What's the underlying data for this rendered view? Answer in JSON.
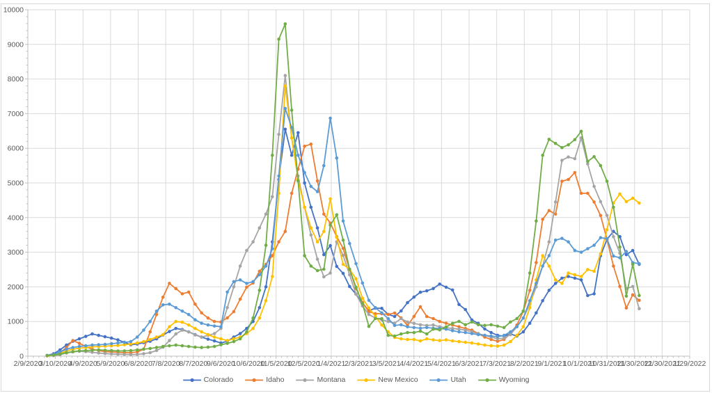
{
  "chart_data": {
    "type": "line",
    "marker": "circle",
    "grid": true,
    "x_axis": {
      "tick_labels": [
        "2/9/2020",
        "3/10/2020",
        "4/9/2020",
        "5/9/2020",
        "6/8/2020",
        "7/8/2020",
        "8/7/2020",
        "9/6/2020",
        "10/6/2020",
        "11/5/2020",
        "12/5/2020",
        "1/4/2021",
        "2/3/2021",
        "3/5/2021",
        "4/4/2021",
        "5/4/2021",
        "6/3/2021",
        "7/3/2021",
        "8/2/2021",
        "9/1/2021",
        "10/1/2021",
        "10/31/2021",
        "11/30/2021",
        "12/30/2021",
        "1/29/2022"
      ],
      "major_tick_interval_days": 30,
      "minor_tick_interval_days": 6
    },
    "y_axis": {
      "min": 0,
      "max": 10000,
      "major_step": 1000,
      "minor_step": 200
    },
    "legend": {
      "position": "bottom",
      "entries": [
        "Colorado",
        "Idaho",
        "Montana",
        "New Mexico",
        "Utah",
        "Wyoming"
      ]
    },
    "data_start_date": "3/1/2020",
    "data_interval_days": 7,
    "series": [
      {
        "name": "Colorado",
        "color": "#4472C4",
        "values": [
          20,
          70,
          180,
          320,
          430,
          500,
          570,
          640,
          600,
          560,
          520,
          470,
          400,
          330,
          350,
          390,
          430,
          500,
          610,
          710,
          800,
          770,
          700,
          620,
          550,
          490,
          440,
          380,
          430,
          550,
          650,
          800,
          1000,
          1400,
          2000,
          3300,
          5100,
          6550,
          5800,
          6450,
          5000,
          4300,
          3700,
          2930,
          3190,
          2590,
          2390,
          2010,
          1790,
          1530,
          1310,
          1385,
          1380,
          1205,
          1145,
          1305,
          1545,
          1705,
          1845,
          1885,
          1950,
          2080,
          1990,
          1910,
          1490,
          1345,
          1045,
          945,
          785,
          680,
          600,
          580,
          640,
          580,
          700,
          950,
          1250,
          1600,
          1900,
          2100,
          2250,
          2300,
          2250,
          2200,
          1750,
          1800,
          2900,
          3370,
          3600,
          3450,
          2930,
          3050,
          2650
        ]
      },
      {
        "name": "Idaho",
        "color": "#ED7D31",
        "values": [
          10,
          30,
          100,
          250,
          450,
          370,
          280,
          200,
          160,
          130,
          120,
          110,
          100,
          100,
          120,
          200,
          700,
          1200,
          1700,
          2100,
          1950,
          1800,
          1850,
          1500,
          1250,
          1100,
          1000,
          985,
          1105,
          1285,
          1645,
          1990,
          2110,
          2450,
          2650,
          2900,
          3300,
          3600,
          4700,
          5400,
          6060,
          6120,
          5060,
          4100,
          3840,
          3450,
          3110,
          2500,
          1950,
          1550,
          1285,
          1225,
          1225,
          1205,
          1245,
          1105,
          885,
          1145,
          1425,
          1145,
          1085,
          1000,
          950,
          900,
          850,
          800,
          750,
          650,
          550,
          480,
          430,
          480,
          650,
          900,
          1300,
          1900,
          2700,
          3950,
          4200,
          4100,
          5050,
          5100,
          5300,
          4700,
          4700,
          4450,
          4060,
          3370,
          2600,
          2010,
          1390,
          1770,
          1610
        ]
      },
      {
        "name": "Montana",
        "color": "#A5A5A5",
        "values": [
          5,
          15,
          40,
          90,
          120,
          140,
          130,
          110,
          90,
          75,
          65,
          55,
          50,
          45,
          50,
          70,
          100,
          160,
          260,
          450,
          640,
          750,
          700,
          610,
          550,
          600,
          650,
          800,
          1400,
          2000,
          2600,
          3050,
          3300,
          3700,
          4100,
          4600,
          6400,
          8100,
          6300,
          5200,
          4300,
          3500,
          2800,
          2290,
          2400,
          3300,
          2910,
          2350,
          1790,
          1450,
          1200,
          1100,
          1050,
          1000,
          950,
          1085,
          985,
          945,
          905,
          885,
          900,
          850,
          820,
          800,
          780,
          750,
          700,
          650,
          600,
          550,
          500,
          520,
          620,
          850,
          1100,
          1500,
          2000,
          2600,
          3300,
          4450,
          5650,
          5750,
          5700,
          6300,
          5550,
          4900,
          4460,
          4060,
          3450,
          2970,
          1950,
          2010,
          1370
        ]
      },
      {
        "name": "New Mexico",
        "color": "#FFC000",
        "values": [
          10,
          30,
          80,
          150,
          200,
          230,
          250,
          270,
          280,
          290,
          300,
          310,
          330,
          350,
          380,
          420,
          480,
          550,
          620,
          850,
          1000,
          980,
          900,
          800,
          700,
          620,
          550,
          500,
          450,
          500,
          550,
          650,
          800,
          1100,
          1600,
          2300,
          4700,
          7800,
          6300,
          5100,
          4300,
          3700,
          3300,
          3600,
          4540,
          3430,
          2650,
          2510,
          2230,
          1670,
          1390,
          1150,
          900,
          700,
          540,
          500,
          480,
          480,
          440,
          500,
          470,
          450,
          470,
          440,
          420,
          400,
          380,
          350,
          320,
          300,
          290,
          320,
          420,
          600,
          850,
          1400,
          2200,
          2900,
          2600,
          2200,
          2100,
          2400,
          2350,
          2300,
          2500,
          2450,
          2950,
          3650,
          4420,
          4680,
          4460,
          4560,
          4420
        ]
      },
      {
        "name": "Utah",
        "color": "#5B9BD5",
        "values": [
          20,
          50,
          120,
          200,
          250,
          280,
          300,
          320,
          330,
          340,
          360,
          380,
          400,
          420,
          550,
          750,
          1000,
          1300,
          1480,
          1500,
          1400,
          1300,
          1200,
          1050,
          950,
          900,
          870,
          850,
          1850,
          2150,
          2200,
          2100,
          2150,
          2350,
          2600,
          3100,
          5200,
          7150,
          6600,
          5800,
          5300,
          4900,
          4750,
          5500,
          6870,
          5720,
          3900,
          3250,
          2670,
          2110,
          1610,
          1400,
          1250,
          1085,
          885,
          905,
          845,
          825,
          805,
          825,
          805,
          800,
          780,
          735,
          700,
          680,
          650,
          620,
          600,
          580,
          560,
          600,
          700,
          850,
          1100,
          1600,
          2100,
          2600,
          2900,
          3350,
          3400,
          3300,
          3050,
          3000,
          3100,
          3200,
          3420,
          3390,
          2890,
          2840,
          3020,
          2700,
          2670
        ]
      },
      {
        "name": "Wyoming",
        "color": "#70AD47",
        "values": [
          20,
          30,
          60,
          100,
          130,
          150,
          160,
          170,
          180,
          170,
          160,
          150,
          150,
          160,
          180,
          200,
          220,
          250,
          280,
          300,
          320,
          300,
          280,
          260,
          250,
          260,
          280,
          330,
          370,
          420,
          500,
          700,
          1100,
          1900,
          3200,
          5800,
          9150,
          9590,
          7100,
          5060,
          2900,
          2600,
          2470,
          2510,
          3780,
          4080,
          3350,
          2510,
          1990,
          1510,
          860,
          1085,
          1085,
          600,
          580,
          640,
          680,
          680,
          720,
          640,
          780,
          760,
          845,
          945,
          1005,
          905,
          985,
          905,
          885,
          905,
          865,
          825,
          985,
          1085,
          1300,
          2400,
          3900,
          5800,
          6260,
          6140,
          6020,
          6100,
          6250,
          6490,
          5620,
          5760,
          5500,
          5050,
          4300,
          3150,
          1730,
          2650,
          1750
        ]
      }
    ]
  },
  "colors": {
    "background": "#FFFFFF",
    "gridline": "#D9D9D9",
    "axis_line": "#BFBFBF",
    "axis_text": "#595959",
    "chart_border": "#D9D9D9"
  }
}
